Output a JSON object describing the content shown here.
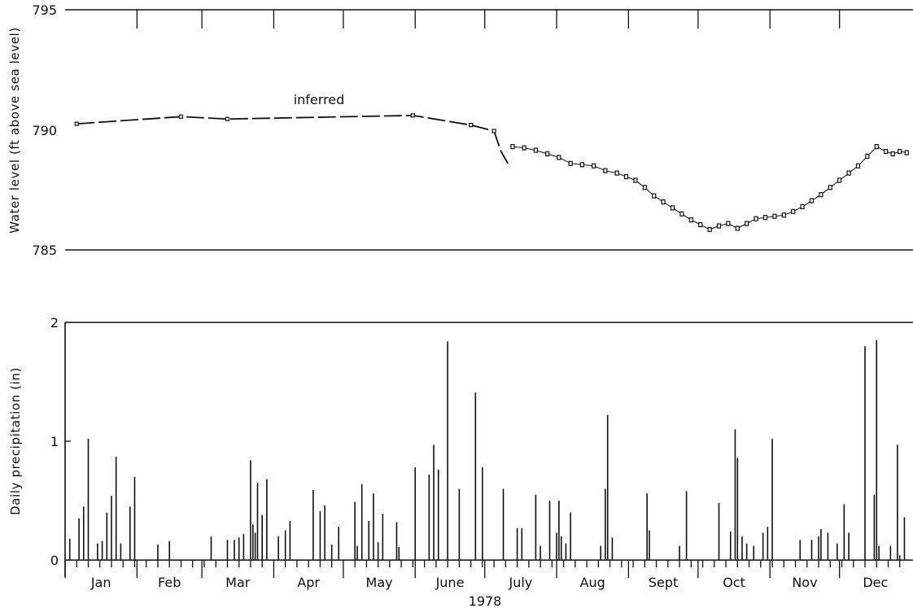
{
  "chart_data": [
    {
      "type": "line",
      "ylabel": "Water level (ft above sea level)",
      "ylim": [
        785,
        795
      ],
      "yticks": [
        785,
        790,
        795
      ],
      "annotation": "inferred",
      "inferred_series": {
        "day": [
          5,
          50,
          70,
          150,
          175,
          185,
          188,
          191
        ],
        "level": [
          790.25,
          790.55,
          790.45,
          790.6,
          790.2,
          789.95,
          789.1,
          788.6
        ]
      },
      "measured_series": {
        "day": [
          193,
          198,
          203,
          208,
          213,
          218,
          223,
          228,
          233,
          238,
          242,
          246,
          250,
          254,
          258,
          262,
          266,
          270,
          274,
          278,
          282,
          286,
          290,
          294,
          298,
          302,
          306,
          310,
          314,
          318,
          322,
          326,
          330,
          334,
          338,
          342,
          346,
          350,
          354,
          357,
          360,
          363
        ],
        "level": [
          789.3,
          789.25,
          789.15,
          789.0,
          788.85,
          788.6,
          788.55,
          788.5,
          788.3,
          788.2,
          788.05,
          787.9,
          787.6,
          787.25,
          787.0,
          786.75,
          786.5,
          786.25,
          786.05,
          785.85,
          786.0,
          786.1,
          785.9,
          786.1,
          786.3,
          786.35,
          786.4,
          786.45,
          786.6,
          786.8,
          787.05,
          787.3,
          787.6,
          787.9,
          788.2,
          788.5,
          788.9,
          789.3,
          789.1,
          789.0,
          789.1,
          789.05
        ]
      }
    },
    {
      "type": "bar",
      "ylabel": "Daily precipitation (in)",
      "xlabel": "1978",
      "ylim": [
        0,
        2
      ],
      "yticks": [
        0,
        1,
        2
      ],
      "months": [
        "Jan",
        "Feb",
        "Mar",
        "Apr",
        "May",
        "June",
        "July",
        "Aug",
        "Sept",
        "Oct",
        "Nov",
        "Dec"
      ],
      "day": [
        2,
        6,
        8,
        10,
        14,
        16,
        18,
        20,
        22,
        24,
        28,
        30,
        40,
        45,
        63,
        70,
        73,
        75,
        77,
        80,
        81,
        82,
        83,
        85,
        87,
        92,
        95,
        97,
        107,
        110,
        112,
        115,
        118,
        125,
        126,
        128,
        131,
        133,
        135,
        137,
        143,
        144,
        151,
        157,
        159,
        161,
        165,
        170,
        177,
        180,
        189,
        195,
        197,
        203,
        205,
        209,
        212,
        213,
        214,
        216,
        218,
        231,
        233,
        234,
        236,
        251,
        252,
        265,
        268,
        282,
        287,
        289,
        290,
        292,
        294,
        297,
        301,
        303,
        305,
        317,
        322,
        325,
        326,
        329,
        333,
        336,
        338,
        345,
        349,
        350,
        351,
        356,
        359,
        360,
        362
      ],
      "values": [
        0.18,
        0.35,
        0.45,
        1.02,
        0.14,
        0.16,
        0.4,
        0.54,
        0.87,
        0.14,
        0.45,
        0.7,
        0.13,
        0.16,
        0.2,
        0.17,
        0.17,
        0.19,
        0.22,
        0.84,
        0.3,
        0.23,
        0.65,
        0.38,
        0.68,
        0.2,
        0.25,
        0.33,
        0.59,
        0.41,
        0.46,
        0.13,
        0.28,
        0.49,
        0.12,
        0.64,
        0.33,
        0.56,
        0.15,
        0.39,
        0.32,
        0.11,
        0.78,
        0.72,
        0.97,
        0.76,
        1.84,
        0.6,
        1.41,
        0.78,
        0.6,
        0.27,
        0.27,
        0.55,
        0.12,
        0.5,
        0.23,
        0.5,
        0.2,
        0.14,
        0.4,
        0.12,
        0.6,
        1.22,
        0.19,
        0.56,
        0.25,
        0.12,
        0.58,
        0.48,
        0.24,
        1.1,
        0.86,
        0.2,
        0.14,
        0.12,
        0.23,
        0.28,
        1.02,
        0.17,
        0.17,
        0.2,
        0.26,
        0.23,
        0.14,
        0.47,
        0.23,
        1.8,
        0.55,
        1.85,
        0.12,
        0.12,
        0.97,
        0.04,
        0.36
      ]
    }
  ]
}
